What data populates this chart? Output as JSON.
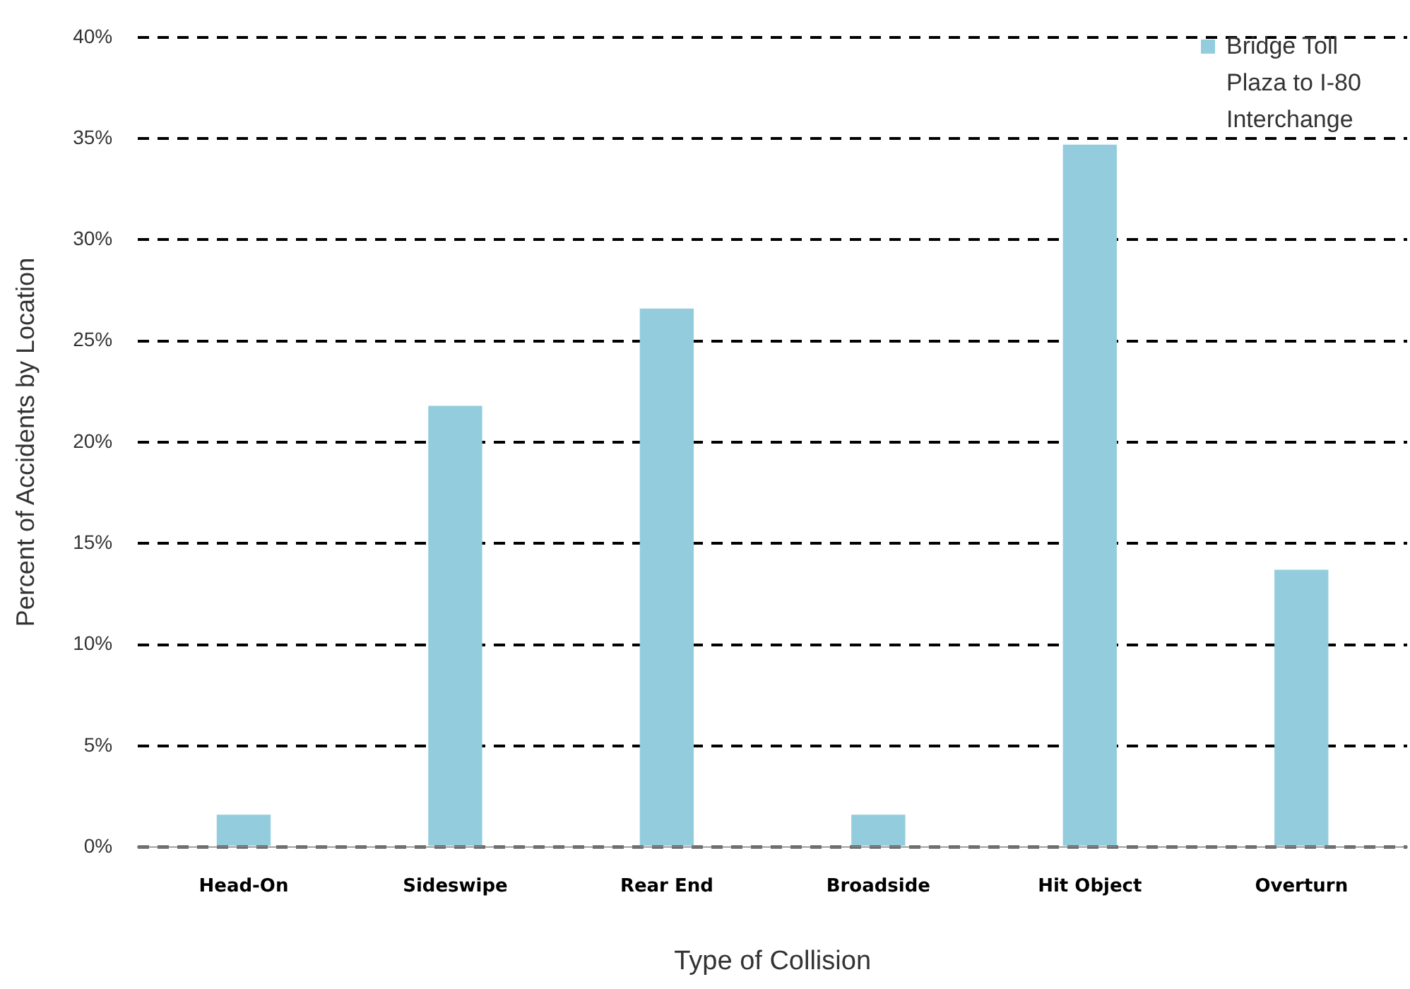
{
  "chart_data": {
    "type": "bar",
    "xlabel": "Type of Collision",
    "ylabel": "Percent of Accidents by Location",
    "categories": [
      "Head-On",
      "Sideswipe",
      "Rear End",
      "Broadside",
      "Hit Object",
      "Overturn"
    ],
    "series": [
      {
        "name": "Bridge Toll Plaza to I-80 Interchange",
        "color": "#93cddd",
        "values": [
          1.6,
          21.8,
          26.6,
          1.6,
          34.7,
          13.7
        ]
      }
    ],
    "ylim": [
      0,
      40
    ],
    "yticks": [
      {
        "value": 0,
        "label": "0%"
      },
      {
        "value": 5,
        "label": "5%"
      },
      {
        "value": 10,
        "label": "10%"
      },
      {
        "value": 15,
        "label": "15%"
      },
      {
        "value": 20,
        "label": "20%"
      },
      {
        "value": 25,
        "label": "25%"
      },
      {
        "value": 30,
        "label": "30%"
      },
      {
        "value": 35,
        "label": "35%"
      },
      {
        "value": 40,
        "label": "40%"
      }
    ],
    "grid": "y",
    "legend": "top right"
  }
}
